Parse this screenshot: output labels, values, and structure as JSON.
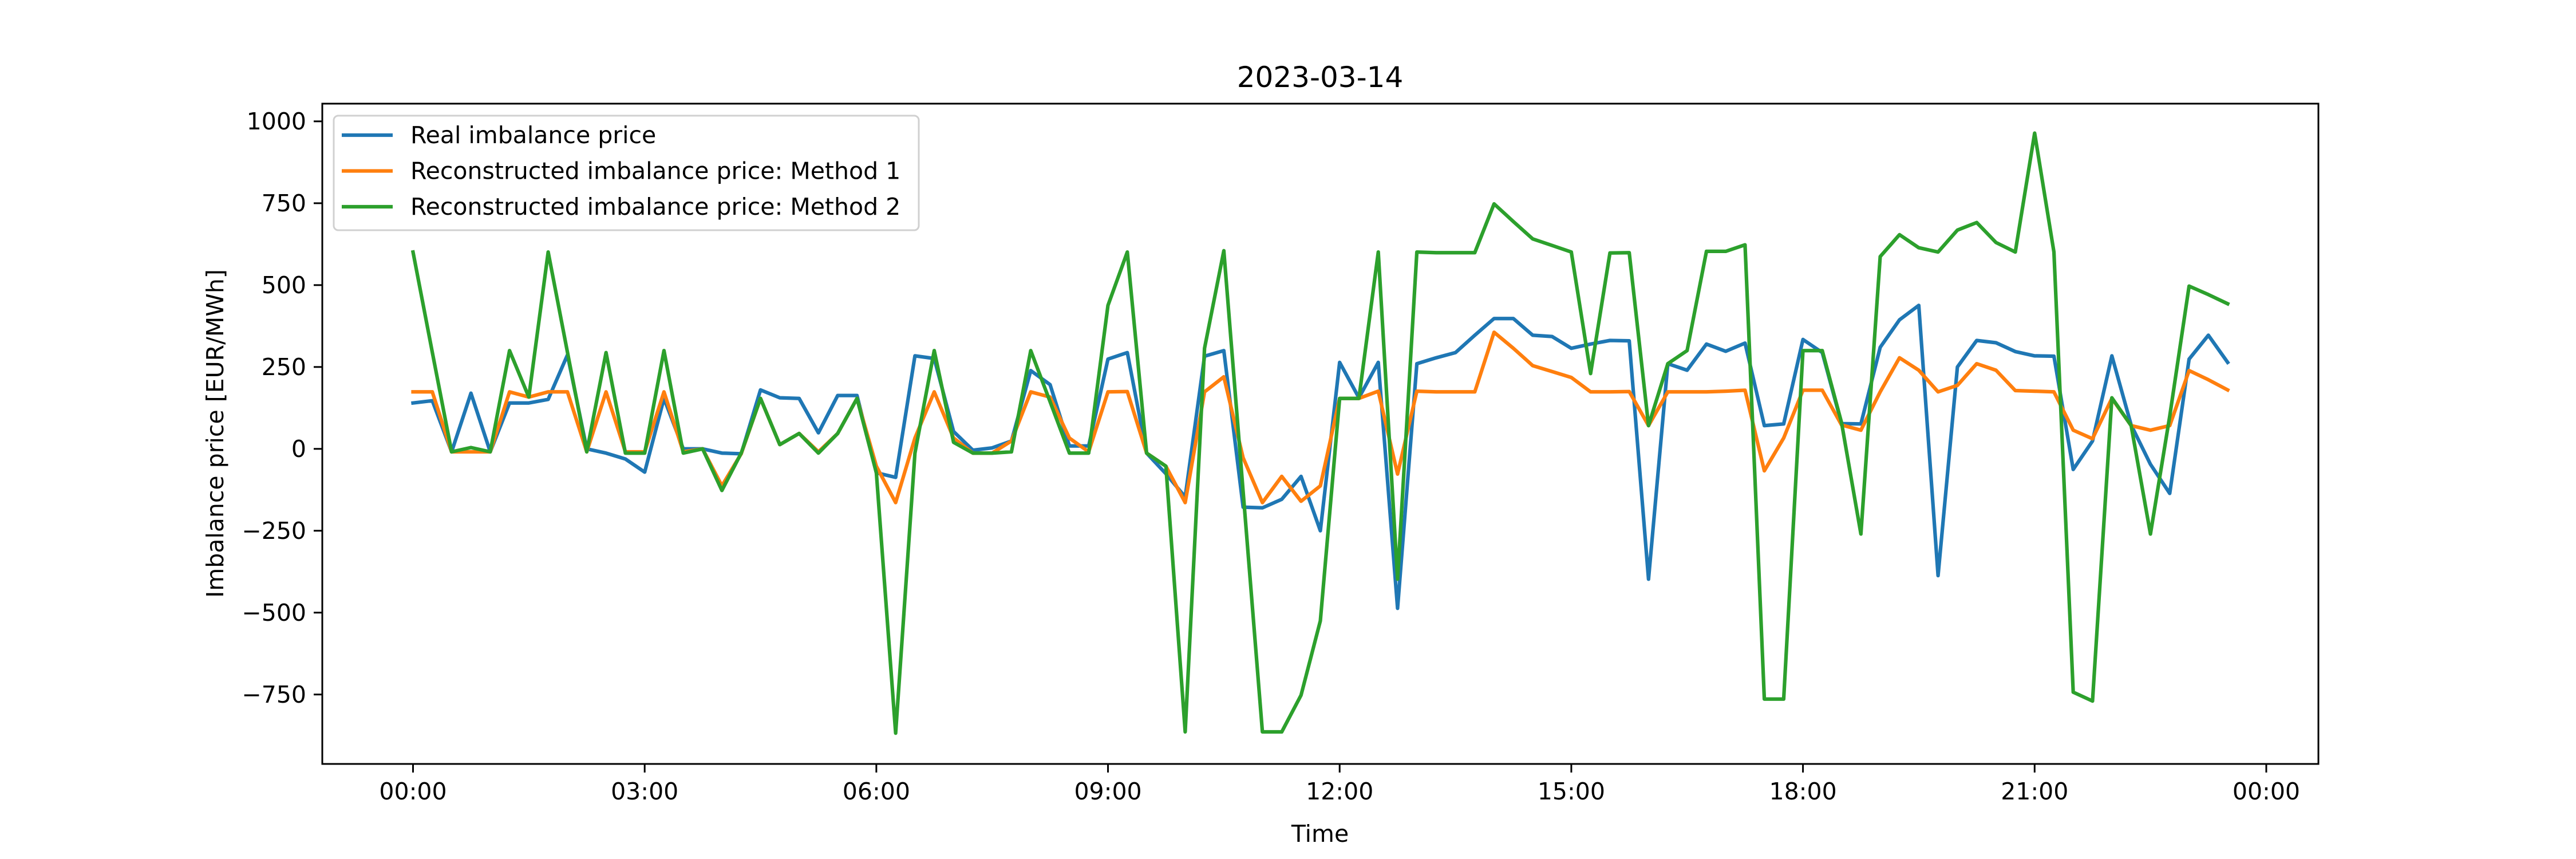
{
  "chart_data": {
    "type": "line",
    "title": "2023-03-14",
    "xlabel": "Time",
    "ylabel": "Imbalance price [EUR/MWh]",
    "x_ticks": [
      "00:00",
      "03:00",
      "06:00",
      "09:00",
      "12:00",
      "15:00",
      "18:00",
      "21:00",
      "00:00"
    ],
    "y_ticks": [
      "1000",
      "750",
      "500",
      "250",
      "0",
      "−250",
      "−500",
      "−750"
    ],
    "y_tick_values": [
      1000,
      750,
      500,
      250,
      0,
      -250,
      -500,
      -750
    ],
    "ylim": [
      -962,
      1054
    ],
    "grid": false,
    "legend_placement": "upper-left",
    "x": [
      "00:00",
      "00:15",
      "00:30",
      "00:45",
      "01:00",
      "01:15",
      "01:30",
      "01:45",
      "02:00",
      "02:15",
      "02:30",
      "02:45",
      "03:00",
      "03:15",
      "03:30",
      "03:45",
      "04:00",
      "04:15",
      "04:30",
      "04:45",
      "05:00",
      "05:15",
      "05:30",
      "05:45",
      "06:00",
      "06:15",
      "06:30",
      "06:45",
      "07:00",
      "07:15",
      "07:30",
      "07:45",
      "08:00",
      "08:15",
      "08:30",
      "08:45",
      "09:00",
      "09:15",
      "09:30",
      "09:45",
      "10:00",
      "10:15",
      "10:30",
      "10:45",
      "11:00",
      "11:15",
      "11:30",
      "11:45",
      "12:00",
      "12:15",
      "12:30",
      "12:45",
      "13:00",
      "13:15",
      "13:30",
      "13:45",
      "14:00",
      "14:15",
      "14:30",
      "14:45",
      "15:00",
      "15:15",
      "15:30",
      "15:45",
      "16:00",
      "16:15",
      "16:30",
      "16:45",
      "17:00",
      "17:15",
      "17:30",
      "17:45",
      "18:00",
      "18:15",
      "18:30",
      "18:45",
      "19:00",
      "19:15",
      "19:30",
      "19:45",
      "20:00",
      "20:15",
      "20:30",
      "20:45",
      "21:00",
      "21:15",
      "21:30",
      "21:45",
      "22:00",
      "22:15",
      "22:30",
      "22:45",
      "23:00",
      "23:15",
      "23:30"
    ],
    "series": [
      {
        "name": "Real imbalance price",
        "color": "#1f77b4",
        "values": [
          140,
          147,
          -9,
          170,
          -9,
          140,
          140,
          151,
          287,
          0,
          -13,
          -31,
          -71,
          154,
          0,
          0,
          -13,
          -15,
          180,
          156,
          154,
          49,
          163,
          163,
          -73,
          -87,
          284,
          276,
          53,
          -4,
          3,
          24,
          239,
          196,
          9,
          9,
          274,
          294,
          -13,
          -76,
          -147,
          283,
          300,
          -178,
          -180,
          -154,
          -84,
          -250,
          264,
          156,
          264,
          -487,
          260,
          278,
          294,
          347,
          398,
          398,
          347,
          343,
          307,
          320,
          331,
          330,
          -398,
          260,
          240,
          320,
          298,
          323,
          71,
          76,
          334,
          294,
          77,
          76,
          310,
          394,
          438,
          -387,
          250,
          331,
          324,
          297,
          284,
          283,
          -63,
          24,
          284,
          73,
          -47,
          -136,
          274,
          347,
          264
        ]
      },
      {
        "name": "Reconstructed imbalance price: Method 1",
        "color": "#ff7f0e",
        "values": [
          174,
          174,
          -9,
          -9,
          -9,
          174,
          158,
          174,
          174,
          -9,
          174,
          -9,
          -9,
          174,
          -9,
          0,
          -113,
          -15,
          154,
          13,
          47,
          -9,
          47,
          154,
          -53,
          -164,
          33,
          174,
          33,
          -13,
          -13,
          24,
          174,
          158,
          33,
          -9,
          174,
          175,
          -13,
          -53,
          -164,
          174,
          220,
          -27,
          -164,
          -84,
          -160,
          -113,
          154,
          154,
          176,
          -77,
          176,
          174,
          174,
          174,
          356,
          307,
          254,
          236,
          218,
          174,
          174,
          175,
          71,
          174,
          174,
          174,
          176,
          179,
          -67,
          33,
          179,
          179,
          73,
          57,
          174,
          278,
          240,
          174,
          194,
          260,
          240,
          178,
          176,
          174,
          57,
          31,
          154,
          71,
          57,
          71,
          239,
          211,
          180
        ]
      },
      {
        "name": "Reconstructed imbalance price: Method 2",
        "color": "#2ca02c",
        "values": [
          601,
          295,
          -9,
          4,
          -9,
          300,
          158,
          601,
          295,
          -9,
          294,
          -13,
          -13,
          300,
          -13,
          0,
          -127,
          -13,
          154,
          13,
          47,
          -13,
          47,
          154,
          -73,
          -868,
          -13,
          300,
          20,
          -13,
          -13,
          -9,
          300,
          144,
          -13,
          -13,
          438,
          601,
          -13,
          -53,
          -864,
          307,
          605,
          -130,
          -864,
          -864,
          -752,
          -525,
          154,
          154,
          601,
          -398,
          601,
          599,
          599,
          599,
          748,
          694,
          641,
          621,
          601,
          230,
          598,
          599,
          71,
          260,
          300,
          603,
          603,
          623,
          -764,
          -764,
          300,
          300,
          80,
          -260,
          587,
          654,
          614,
          601,
          668,
          691,
          630,
          601,
          964,
          601,
          -743,
          -770,
          156,
          71,
          -260,
          100,
          497,
          471,
          443
        ]
      }
    ]
  }
}
